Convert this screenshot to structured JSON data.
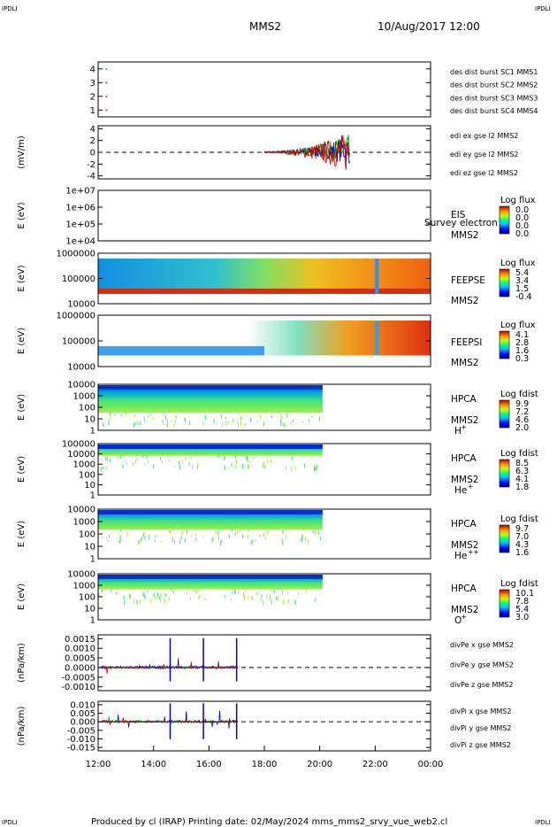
{
  "header": {
    "corner_left_top": "IPDLI",
    "corner_right_top": "IPDLI",
    "corner_left_bottom": "IPDLI",
    "corner_right_bottom": "IPDLI",
    "mission": "MMS2",
    "datetime": "10/Aug/2017 12:00"
  },
  "footer": {
    "text": "Produced by cl (IRAP)   Printing date: 02/May/2024   mms_mms2_srvy_vue_web2.cl"
  },
  "time_axis": {
    "ticks": [
      "12:00",
      "14:00",
      "16:00",
      "18:00",
      "20:00",
      "22:00",
      "00:00"
    ],
    "start_hour": 12,
    "end_hour": 24
  },
  "chart_data": [
    {
      "type": "scatter",
      "id": "des",
      "ylim": [
        0.5,
        4.5
      ],
      "yticks": [
        "1",
        "2",
        "3",
        "4"
      ],
      "ylabel": "",
      "points": [
        {
          "x": 12.3,
          "y": 4,
          "color": "#00c000"
        },
        {
          "x": 12.3,
          "y": 3,
          "color": "#c000c0"
        },
        {
          "x": 12.3,
          "y": 2,
          "color": "#c000c0"
        },
        {
          "x": 12.3,
          "y": 1,
          "color": "#c000c0"
        }
      ],
      "legend": [
        {
          "text": "des dist burst SC1 MMS1",
          "color": "#0000c0"
        },
        {
          "text": "des dist burst SC2 MMS2",
          "color": "#c000c0"
        },
        {
          "text": "des dist burst SC3 MMS3",
          "color": "#c00000"
        },
        {
          "text": "des dist burst SC4 MMS4",
          "color": "#00c000"
        }
      ]
    },
    {
      "type": "line",
      "id": "edi",
      "ylim": [
        -4.5,
        4.5
      ],
      "yticks": [
        "4",
        "2",
        "0",
        "-2",
        "-4"
      ],
      "ytick_values": [
        4,
        2,
        0,
        -2,
        -4
      ],
      "ylabel": "(mV/m)",
      "data_range": [
        18.0,
        21.1
      ],
      "legend": [
        {
          "text": "edi ex gse l2 MMS2",
          "color": "#c00000"
        },
        {
          "text": "edi ey gse l2 MMS2",
          "color": "#00a000"
        },
        {
          "text": "edi ez gse l2 MMS2",
          "color": "#0000c0"
        }
      ]
    },
    {
      "type": "heatmap",
      "id": "eis",
      "yticks": [
        "1e+07",
        "1e+06",
        "1e+05",
        "1e+04"
      ],
      "ylabel": "E (eV)",
      "label_lines": [
        "EIS",
        "MMS2"
      ],
      "overlay": "Survey electron to",
      "colorbar_title": "Log flux",
      "colorbar_ticks": [
        "0.0",
        "0.0",
        "0.0",
        "0.0"
      ],
      "empty": true
    },
    {
      "type": "heatmap",
      "id": "feepse",
      "yticks": [
        "1000000",
        "100000",
        "10000"
      ],
      "ylabel": "E (eV)",
      "label_lines": [
        "FEEPSE",
        "MMS2"
      ],
      "colorbar_title": "Log flux",
      "colorbar_ticks": [
        "5.4",
        "3.4",
        "1.5",
        "-0.4"
      ],
      "data_range": [
        12.0,
        24.0
      ]
    },
    {
      "type": "heatmap",
      "id": "feepsi",
      "yticks": [
        "1000000",
        "100000",
        "10000"
      ],
      "ylabel": "E (eV)",
      "label_lines": [
        "FEEPSI",
        "MMS2"
      ],
      "colorbar_title": "Log flux",
      "colorbar_ticks": [
        "4.1",
        "2.8",
        "1.6",
        "0.3"
      ],
      "data_range": [
        12.0,
        24.0
      ]
    },
    {
      "type": "heatmap",
      "id": "hpca_h",
      "yticks": [
        "10000",
        "1000",
        "100",
        "10",
        "1"
      ],
      "ylabel": "E (eV)",
      "label_lines": [
        "HPCA",
        "MMS2"
      ],
      "species": "H",
      "species_sup": "+",
      "colorbar_title": "Log fdist",
      "colorbar_ticks": [
        "9.9",
        "7.2",
        "4.6",
        "2.0"
      ],
      "data_range": [
        12.0,
        20.1
      ]
    },
    {
      "type": "heatmap",
      "id": "hpca_he",
      "yticks": [
        "100000",
        "10000",
        "1000",
        "100",
        "10",
        "1"
      ],
      "ylabel": "E (eV)",
      "label_lines": [
        "HPCA",
        "MMS2"
      ],
      "species": "He",
      "species_sup": "+",
      "colorbar_title": "Log fdist",
      "colorbar_ticks": [
        "8.5",
        "6.3",
        "4.1",
        "1.8"
      ],
      "data_range": [
        12.0,
        20.1
      ]
    },
    {
      "type": "heatmap",
      "id": "hpca_hepp",
      "yticks": [
        "10000",
        "1000",
        "100",
        "10",
        "1"
      ],
      "ylabel": "E (eV)",
      "label_lines": [
        "HPCA",
        "MMS2"
      ],
      "species": "He",
      "species_sup": "++",
      "colorbar_title": "Log fdist",
      "colorbar_ticks": [
        "9.7",
        "7.0",
        "4.3",
        "1.6"
      ],
      "data_range": [
        12.0,
        20.1
      ]
    },
    {
      "type": "heatmap",
      "id": "hpca_o",
      "yticks": [
        "10000",
        "1000",
        "100",
        "10",
        "1"
      ],
      "ylabel": "E (eV)",
      "label_lines": [
        "HPCA",
        "MMS2"
      ],
      "species": "O",
      "species_sup": "+",
      "colorbar_title": "Log fdist",
      "colorbar_ticks": [
        "10.1",
        "7.8",
        "5.4",
        "3.0"
      ],
      "data_range": [
        12.0,
        20.1
      ]
    },
    {
      "type": "line",
      "id": "divpe",
      "ylim": [
        -0.0012,
        0.0017
      ],
      "yticks": [
        "0.0015",
        "0.0010",
        "0.0005",
        "0.0000",
        "-0.0005",
        "-0.0010"
      ],
      "ytick_values": [
        0.0015,
        0.001,
        0.0005,
        0.0,
        -0.0005,
        -0.001
      ],
      "ylabel": "(nPa/km)",
      "data_range": [
        12.1,
        17.0
      ],
      "legend": [
        {
          "text": "divPe x gse MMS2",
          "color": "#c00000"
        },
        {
          "text": "divPe y gse MMS2",
          "color": "#00a000"
        },
        {
          "text": "divPe z gse MMS2",
          "color": "#0000c0"
        }
      ]
    },
    {
      "type": "line",
      "id": "divpi",
      "ylim": [
        -0.017,
        0.012
      ],
      "yticks": [
        "0.010",
        "0.005",
        "0.000",
        "-0.005",
        "-0.010",
        "-0.015"
      ],
      "ytick_values": [
        0.01,
        0.005,
        0.0,
        -0.005,
        -0.01,
        -0.015
      ],
      "ylabel": "(nPa/km)",
      "data_range": [
        12.1,
        17.0
      ],
      "legend": [
        {
          "text": "divPi x gse MMS2",
          "color": "#c00000"
        },
        {
          "text": "divPi y gse MMS2",
          "color": "#00a000"
        },
        {
          "text": "divPi z gse MMS2",
          "color": "#0000c0"
        }
      ]
    }
  ]
}
